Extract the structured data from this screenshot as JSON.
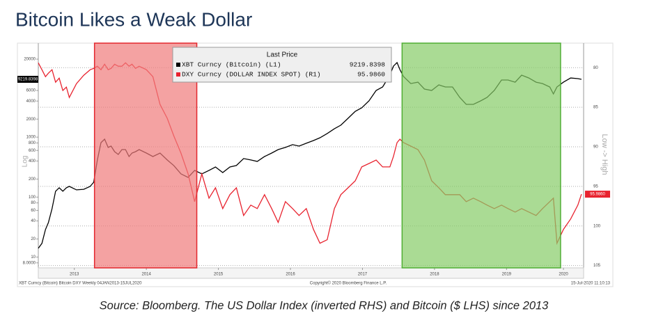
{
  "chart_data": {
    "type": "line",
    "title": "Bitcoin Likes a Weak Dollar",
    "caption": "Source: Bloomberg. The US Dollar Index (inverted RHS) and Bitcoin ($ LHS) since 2013",
    "legend_title": "Last Price",
    "y_label": "Log",
    "y2_label": "Low -> High",
    "footer": {
      "left": "XBT Curncy (Bitcoin) Bitcoin DXY  Weekly 04JAN2013-15JUL2020",
      "center": "Copyright© 2020 Bloomberg Finance L.P.",
      "right": "15-Jul-2020 11:10:13"
    },
    "x": [
      2013.0,
      2013.05,
      2013.1,
      2013.14,
      2013.19,
      2013.24,
      2013.29,
      2013.34,
      2013.39,
      2013.43,
      2013.53,
      2013.63,
      2013.72,
      2013.77,
      2013.82,
      2013.87,
      2013.92,
      2013.97,
      2014.01,
      2014.06,
      2014.11,
      2014.16,
      2014.21,
      2014.26,
      2014.3,
      2014.35,
      2014.4,
      2014.5,
      2014.59,
      2014.69,
      2014.79,
      2014.88,
      2014.98,
      2015.08,
      2015.17,
      2015.27,
      2015.37,
      2015.46,
      2015.56,
      2015.66,
      2015.75,
      2015.85,
      2015.95,
      2016.04,
      2016.14,
      2016.24,
      2016.33,
      2016.43,
      2016.53,
      2016.62,
      2016.72,
      2016.82,
      2016.91,
      2017.01,
      2017.11,
      2017.2,
      2017.3,
      2017.4,
      2017.49,
      2017.59,
      2017.69,
      2017.78,
      2017.88,
      2017.93,
      2017.98,
      2018.02,
      2018.07,
      2018.17,
      2018.27,
      2018.36,
      2018.46,
      2018.56,
      2018.65,
      2018.75,
      2018.85,
      2018.94,
      2019.04,
      2019.14,
      2019.23,
      2019.33,
      2019.43,
      2019.52,
      2019.62,
      2019.71,
      2019.81,
      2019.91,
      2020.0,
      2020.1,
      2020.15,
      2020.2,
      2020.29,
      2020.39,
      2020.49,
      2020.54
    ],
    "xlim": [
      2013,
      2020.57
    ],
    "xticks": [
      {
        "value": 2013.5,
        "label": "2013"
      },
      {
        "value": 2014.5,
        "label": "2014"
      },
      {
        "value": 2015.5,
        "label": "2015"
      },
      {
        "value": 2016.5,
        "label": "2016"
      },
      {
        "value": 2017.5,
        "label": "2017"
      },
      {
        "value": 2018.5,
        "label": "2018"
      },
      {
        "value": 2019.5,
        "label": "2019"
      },
      {
        "value": 2020.29,
        "label": "2020"
      }
    ],
    "ylim": [
      6.6,
      37000
    ],
    "y_scale": "log",
    "yticks": [
      {
        "value": 8,
        "label": "8.0000"
      },
      10,
      20,
      40,
      60,
      80,
      100,
      200,
      400,
      600,
      800,
      1000,
      2000,
      4000,
      6000,
      20000
    ],
    "y2lim": [
      76.9,
      105.3
    ],
    "y2_inverted": true,
    "y2ticks": [
      80,
      85,
      90,
      95,
      100,
      105
    ],
    "grid": true,
    "series": [
      {
        "name": "XBT Curncy (Bitcoin)  (L1)",
        "color": "#000000",
        "last_label": "9219.8398",
        "values": [
          14.0,
          16.9,
          28.8,
          37.6,
          64,
          125,
          143,
          125,
          143,
          151,
          132,
          135,
          151,
          177,
          416,
          810,
          926,
          673,
          709,
          573,
          515,
          621,
          621,
          475,
          543,
          573,
          621,
          543,
          475,
          543,
          416,
          336,
          244,
          213,
          279,
          244,
          279,
          318,
          257,
          318,
          336,
          439,
          416,
          394,
          475,
          543,
          621,
          673,
          749,
          709,
          790,
          877,
          976,
          1149,
          1380,
          1584,
          2066,
          2699,
          3082,
          4024,
          6006,
          6873,
          10810,
          15270,
          17540,
          13400,
          10260,
          7843,
          8270,
          6340,
          6006,
          7440,
          6873,
          6873,
          4600,
          3522,
          3522,
          4024,
          4600,
          6006,
          8970,
          8970,
          8270,
          10810,
          9710,
          8270,
          7843,
          6873,
          5260,
          6873,
          8270,
          9710,
          9470,
          9219.8398
        ]
      },
      {
        "name": "DXY Curncy (DOLLAR INDEX SPOT)  (R1)",
        "color": "#e8232f",
        "axis": "y2",
        "last_label": "95.9860",
        "values": [
          79.39,
          80.26,
          81.14,
          80.7,
          80.26,
          81.84,
          81.32,
          82.89,
          82.46,
          83.77,
          82.02,
          80.96,
          80.26,
          80.09,
          79.82,
          80.26,
          79.56,
          80.26,
          80.09,
          79.56,
          79.82,
          79.82,
          79.39,
          79.82,
          79.56,
          80.09,
          79.82,
          80.26,
          81.14,
          84.65,
          86.4,
          88.6,
          90.79,
          93.42,
          96.93,
          93.42,
          96.49,
          95.18,
          97.81,
          96.05,
          95.18,
          98.68,
          97.37,
          97.81,
          96.05,
          97.81,
          99.56,
          96.93,
          97.81,
          98.68,
          97.81,
          100.44,
          102.19,
          101.75,
          97.81,
          96.05,
          95.18,
          94.3,
          92.54,
          92.11,
          91.67,
          92.54,
          92.54,
          91.23,
          89.47,
          89.04,
          89.47,
          89.91,
          90.35,
          91.67,
          94.3,
          95.18,
          96.05,
          96.05,
          96.05,
          96.93,
          96.49,
          96.93,
          97.37,
          97.81,
          97.37,
          97.81,
          98.25,
          97.81,
          98.25,
          98.68,
          97.81,
          96.93,
          96.49,
          102.19,
          100.44,
          99.12,
          97.37,
          95.986
        ]
      }
    ],
    "shaded_regions": [
      {
        "start": 2013.78,
        "end": 2015.2,
        "color": "#f07b7b",
        "edge": "#e3262d"
      },
      {
        "start": 2018.05,
        "end": 2020.25,
        "color": "#86cc66",
        "edge": "#4fae33"
      }
    ]
  }
}
